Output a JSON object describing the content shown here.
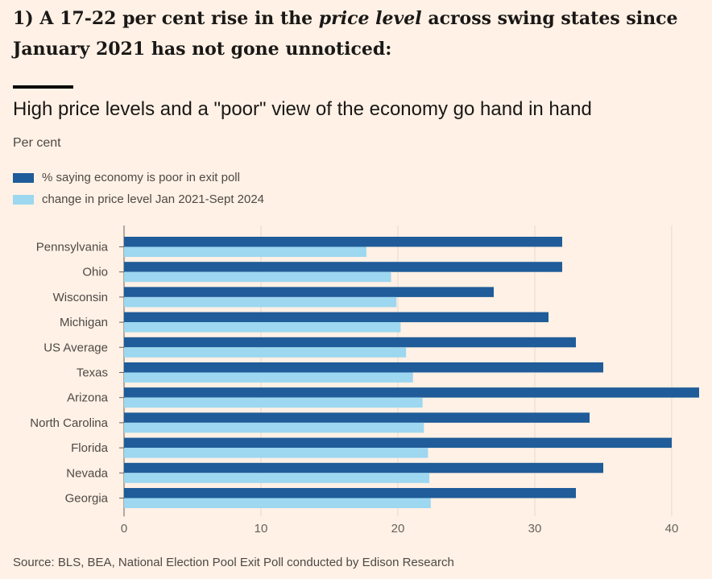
{
  "headline": {
    "part1": "1) A 17-22 per cent rise in the ",
    "emph": "price level",
    "part2": " across swing states since January 2021 has not gone unnoticed:"
  },
  "colors": {
    "background": "#fff1e5",
    "series_poor": "#1f5c99",
    "series_price": "#9dd7f0"
  },
  "chart_data": {
    "type": "bar",
    "orientation": "horizontal",
    "title": "High price levels and a \"poor\" view of the economy go hand in hand",
    "subtitle": "Per cent",
    "categories": [
      "Pennsylvania",
      "Ohio",
      "Wisconsin",
      "Michigan",
      "US Average",
      "Texas",
      "Arizona",
      "North Carolina",
      "Florida",
      "Nevada",
      "Georgia"
    ],
    "series": [
      {
        "name": "% saying economy is poor in exit poll",
        "color": "#1f5c99",
        "values": [
          32,
          32,
          27,
          31,
          33,
          35,
          42,
          34,
          40,
          35,
          33
        ]
      },
      {
        "name": "change in price level Jan 2021-Sept 2024",
        "color": "#9dd7f0",
        "values": [
          17.7,
          19.5,
          19.9,
          20.2,
          20.6,
          21.1,
          21.8,
          21.9,
          22.2,
          22.3,
          22.4
        ]
      }
    ],
    "xlim": [
      0,
      42
    ],
    "xticks": [
      0,
      10,
      20,
      30,
      40
    ],
    "grid": true,
    "legend_position": "top-left",
    "source": "Source: BLS, BEA, National Election Pool Exit Poll conducted by Edison Research"
  }
}
